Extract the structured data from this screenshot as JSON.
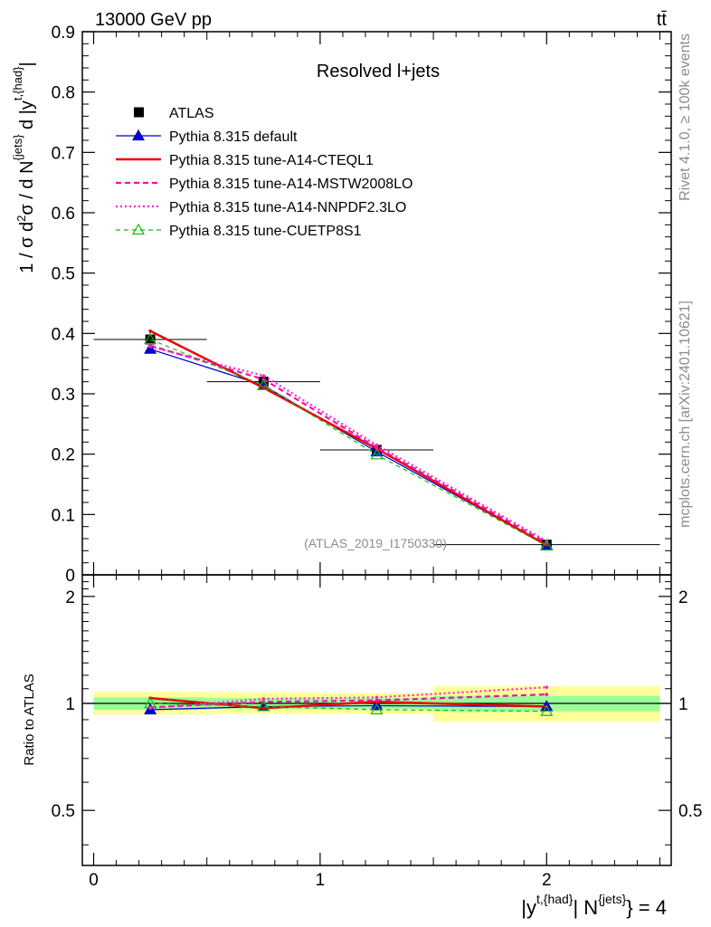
{
  "header": {
    "energy_label": "13000 GeV pp",
    "process_label": "tt̄",
    "subtitle": "Resolved l+jets",
    "watermark": "(ATLAS_2019_I1750330)"
  },
  "side_labels": {
    "rivet": "Rivet 4.1.0, ≥ 100k events",
    "mcplots": "mcplots.cern.ch [arXiv:2401.10621]"
  },
  "colors": {
    "atlas": "#000000",
    "default": "#0000cc",
    "cteql1": "#ee0000",
    "mstw": "#ee11aa",
    "nnpdf": "#ff22cc",
    "cuetp": "#11bb11",
    "band_inner": "#99ff99",
    "band_outer": "#ffff99"
  },
  "chart_data": [
    {
      "type": "line",
      "name": "main",
      "ylabel": "1 / σ d²σ / d N^{jets} d |y^{t,{had}}|",
      "ylim": [
        0,
        0.9
      ],
      "xlim": [
        -0.05,
        2.55
      ],
      "yticks": [
        0,
        0.1,
        0.2,
        0.3,
        0.4,
        0.5,
        0.6,
        0.7,
        0.8,
        0.9
      ],
      "ytick_labels": [
        "0",
        "0.1",
        "0.2",
        "0.3",
        "0.4",
        "0.5",
        "0.6",
        "0.7",
        "0.8",
        "0.9"
      ],
      "x": [
        0.25,
        0.75,
        1.25,
        2.0
      ],
      "series": [
        {
          "key": "atlas",
          "name": "ATLAS",
          "values": [
            0.39,
            0.32,
            0.207,
            0.05
          ],
          "xerr": [
            0.25,
            0.25,
            0.25,
            0.5
          ],
          "yerr": [
            0.012,
            0.01,
            0.007,
            0.003
          ]
        },
        {
          "key": "default",
          "name": "Pythia 8.315 default",
          "values": [
            0.374,
            0.314,
            0.204,
            0.049
          ]
        },
        {
          "key": "cteql1",
          "name": "Pythia 8.315 tune-A14-CTEQL1",
          "values": [
            0.404,
            0.31,
            0.209,
            0.049
          ]
        },
        {
          "key": "mstw",
          "name": "Pythia 8.315 tune-A14-MSTW2008LO",
          "values": [
            0.38,
            0.324,
            0.211,
            0.053
          ]
        },
        {
          "key": "nnpdf",
          "name": "Pythia 8.315 tune-A14-NNPDF2.3LO",
          "values": [
            0.378,
            0.33,
            0.215,
            0.056
          ]
        },
        {
          "key": "cuetp",
          "name": "Pythia 8.315 tune-CUETP8S1",
          "values": [
            0.39,
            0.314,
            0.199,
            0.048
          ]
        }
      ]
    },
    {
      "type": "line",
      "name": "ratio",
      "ylabel": "Ratio to ATLAS",
      "ylim": [
        0.35,
        2.3
      ],
      "log_y": true,
      "yticks_labeled": [
        0.5,
        1,
        2
      ],
      "ytick_labels": [
        "0.5",
        "1",
        "2"
      ],
      "xlim": [
        -0.05,
        2.55
      ],
      "xticks": [
        0,
        1,
        2
      ],
      "xtick_labels": [
        "0",
        "1",
        "2"
      ],
      "xlabel": "|y^{t,{had}}| N^{jets} = 4",
      "x": [
        0.25,
        0.75,
        1.25,
        2.0
      ],
      "bands": [
        {
          "x0": 0.0,
          "x1": 0.5,
          "inner": [
            0.96,
            1.04
          ],
          "outer": [
            0.93,
            1.08
          ]
        },
        {
          "x0": 0.5,
          "x1": 1.0,
          "inner": [
            0.965,
            1.035
          ],
          "outer": [
            0.935,
            1.075
          ]
        },
        {
          "x0": 1.0,
          "x1": 1.5,
          "inner": [
            0.965,
            1.035
          ],
          "outer": [
            0.935,
            1.07
          ]
        },
        {
          "x0": 1.5,
          "x1": 2.5,
          "inner": [
            0.95,
            1.05
          ],
          "outer": [
            0.89,
            1.12
          ]
        }
      ],
      "series": [
        {
          "key": "default",
          "name": "Pythia 8.315 default",
          "values": [
            0.96,
            0.98,
            0.985,
            0.98
          ]
        },
        {
          "key": "cteql1",
          "name": "Pythia 8.315 tune-A14-CTEQL1",
          "values": [
            1.035,
            0.97,
            1.01,
            0.98
          ]
        },
        {
          "key": "mstw",
          "name": "Pythia 8.315 tune-A14-MSTW2008LO",
          "values": [
            0.975,
            1.01,
            1.02,
            1.06
          ]
        },
        {
          "key": "nnpdf",
          "name": "Pythia 8.315 tune-A14-NNPDF2.3LO",
          "values": [
            0.97,
            1.03,
            1.04,
            1.11
          ]
        },
        {
          "key": "cuetp",
          "name": "Pythia 8.315 tune-CUETP8S1",
          "values": [
            1.0,
            0.98,
            0.96,
            0.95
          ]
        }
      ]
    }
  ]
}
